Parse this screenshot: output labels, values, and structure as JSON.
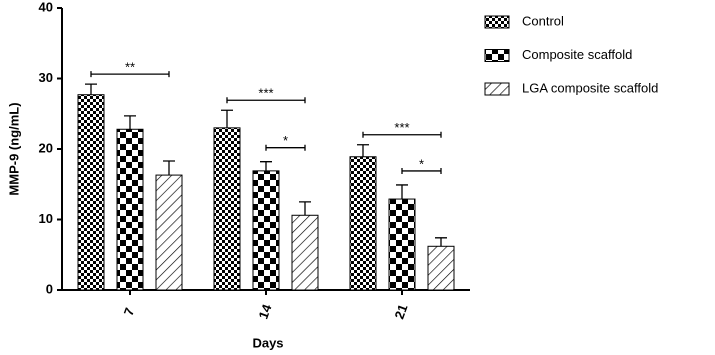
{
  "chart_data": {
    "type": "bar",
    "x_label": "Days",
    "y_label": "MMP-9 (ng/mL)",
    "categories": [
      "7",
      "14",
      "21"
    ],
    "series": [
      {
        "name": "Control",
        "color": "#000000",
        "pattern": "fine-checker",
        "values": [
          27.7,
          23.0,
          18.9
        ],
        "errors": [
          1.5,
          2.5,
          1.7
        ]
      },
      {
        "name": "Composite scaffold",
        "color": "#000000",
        "pattern": "checker",
        "values": [
          22.8,
          16.9,
          12.9
        ],
        "errors": [
          1.9,
          1.3,
          2.0
        ]
      },
      {
        "name": "LGA composite scaffold",
        "color": "#000000",
        "pattern": "hatch",
        "values": [
          16.3,
          10.6,
          6.2
        ],
        "errors": [
          2.0,
          1.9,
          1.2
        ]
      }
    ],
    "annotations": [
      {
        "label": "**",
        "category": 0,
        "from": 0,
        "to": 2
      },
      {
        "label": "***",
        "category": 1,
        "from": 0,
        "to": 2
      },
      {
        "label": "*",
        "category": 1,
        "from": 1,
        "to": 2
      },
      {
        "label": "***",
        "category": 2,
        "from": 0,
        "to": 2
      },
      {
        "label": "*",
        "category": 2,
        "from": 1,
        "to": 2
      }
    ],
    "ylim": [
      0,
      40
    ],
    "yticks": [
      0,
      10,
      20,
      30,
      40
    ],
    "legend": "right"
  }
}
